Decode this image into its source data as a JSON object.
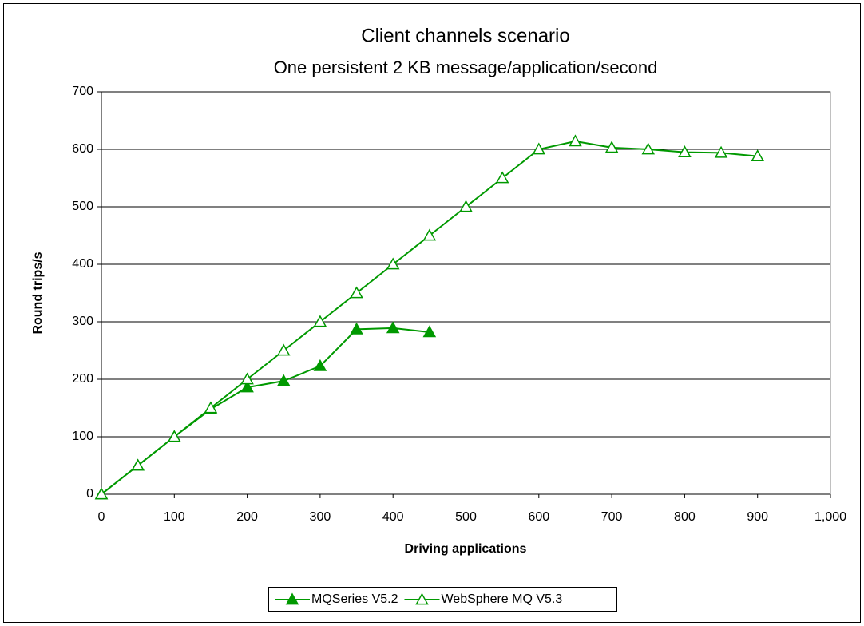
{
  "chart_data": {
    "type": "line",
    "title": "Client channels scenario",
    "subtitle": "One persistent 2 KB message/application/second",
    "x_label": "Driving applications",
    "y_label": "Round trips/s",
    "xlim": [
      0,
      1000
    ],
    "ylim": [
      0,
      700
    ],
    "xticks": [
      0,
      100,
      200,
      300,
      400,
      500,
      600,
      700,
      800,
      900,
      {
        "value": 1000,
        "label": "1,000"
      }
    ],
    "yticks": [
      0,
      100,
      200,
      300,
      400,
      500,
      600,
      700
    ],
    "grid": true,
    "legend": "bottom",
    "series": [
      {
        "name": "MQSeries V5.2",
        "color": "#009900",
        "marker": "filled-triangle",
        "x": [
          0,
          50,
          100,
          150,
          200,
          250,
          300,
          350,
          400,
          450
        ],
        "values": [
          0,
          50,
          100,
          148,
          186,
          197,
          223,
          287,
          289,
          282
        ]
      },
      {
        "name": "WebSphere MQ V5.3",
        "color": "#009900",
        "marker": "hollow-triangle",
        "x": [
          0,
          50,
          100,
          150,
          200,
          250,
          300,
          350,
          400,
          450,
          500,
          550,
          600,
          650,
          700,
          750,
          800,
          850,
          900
        ],
        "values": [
          0,
          50,
          100,
          150,
          200,
          250,
          300,
          350,
          400,
          450,
          500,
          550,
          600,
          614,
          603,
          600,
          595,
          594,
          588
        ]
      }
    ]
  }
}
